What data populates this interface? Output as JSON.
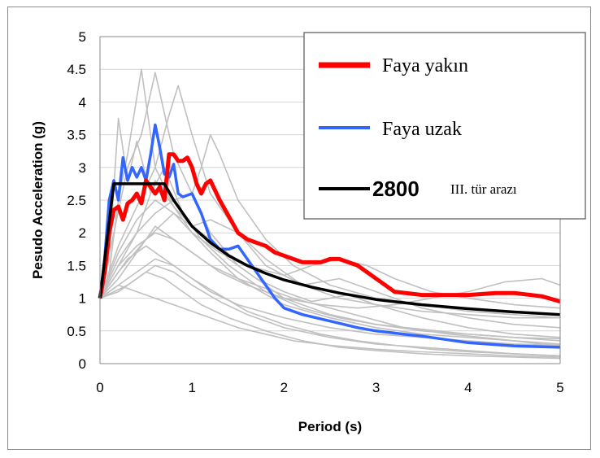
{
  "chart_data": {
    "type": "line",
    "xlabel": "Period (s)",
    "ylabel": "Pesudo Acceleration (g)",
    "xlim": [
      0,
      5
    ],
    "ylim": [
      0,
      5
    ],
    "xticks": [
      "0",
      "1",
      "2",
      "3",
      "4",
      "5"
    ],
    "yticks": [
      "0",
      "0.5",
      "1",
      "1.5",
      "2",
      "2.5",
      "3",
      "3.5",
      "4",
      "4.5",
      "5"
    ],
    "grid": true,
    "legend_position": "top-right",
    "legend": {
      "near": "Faya yakın",
      "far": "Faya uzak",
      "code_number": "2800",
      "code_suffix": "III. tür arazı"
    },
    "colors": {
      "near": "#ff0000",
      "far": "#3366ff",
      "code": "#000000",
      "records": "#c0c0c0",
      "grid": "#d4d4d4"
    },
    "series": [
      {
        "name": "Faya yakın",
        "color": "#ff0000",
        "x": [
          0,
          0.05,
          0.1,
          0.15,
          0.2,
          0.25,
          0.3,
          0.35,
          0.4,
          0.45,
          0.5,
          0.55,
          0.6,
          0.65,
          0.7,
          0.75,
          0.8,
          0.85,
          0.9,
          0.95,
          1.0,
          1.05,
          1.1,
          1.15,
          1.2,
          1.3,
          1.4,
          1.5,
          1.6,
          1.7,
          1.8,
          1.9,
          2.0,
          2.2,
          2.4,
          2.5,
          2.6,
          2.8,
          2.9,
          3.0,
          3.1,
          3.2,
          3.5,
          4.0,
          4.3,
          4.5,
          4.8,
          5.0
        ],
        "y": [
          1.0,
          1.4,
          2.0,
          2.35,
          2.4,
          2.2,
          2.45,
          2.5,
          2.6,
          2.45,
          2.8,
          2.7,
          2.6,
          2.7,
          2.5,
          3.2,
          3.2,
          3.1,
          3.1,
          3.15,
          3.0,
          2.75,
          2.6,
          2.75,
          2.8,
          2.5,
          2.25,
          2.0,
          1.9,
          1.85,
          1.8,
          1.7,
          1.65,
          1.55,
          1.55,
          1.6,
          1.6,
          1.5,
          1.4,
          1.3,
          1.2,
          1.1,
          1.05,
          1.05,
          1.08,
          1.08,
          1.03,
          0.95
        ]
      },
      {
        "name": "Faya uzak",
        "color": "#3366ff",
        "x": [
          0,
          0.05,
          0.1,
          0.15,
          0.2,
          0.25,
          0.3,
          0.35,
          0.4,
          0.45,
          0.5,
          0.55,
          0.6,
          0.65,
          0.7,
          0.75,
          0.8,
          0.85,
          0.9,
          1.0,
          1.1,
          1.2,
          1.3,
          1.4,
          1.5,
          1.6,
          1.7,
          1.8,
          1.9,
          2.0,
          2.2,
          2.5,
          2.8,
          3.0,
          3.3,
          3.5,
          4.0,
          4.5,
          5.0
        ],
        "y": [
          1.0,
          1.6,
          2.5,
          2.8,
          2.5,
          3.15,
          2.8,
          3.0,
          2.85,
          3.0,
          2.8,
          3.2,
          3.65,
          3.3,
          2.9,
          2.85,
          3.05,
          2.6,
          2.55,
          2.6,
          2.3,
          1.9,
          1.75,
          1.75,
          1.8,
          1.6,
          1.4,
          1.2,
          1.0,
          0.85,
          0.75,
          0.65,
          0.55,
          0.5,
          0.45,
          0.42,
          0.32,
          0.27,
          0.25
        ]
      },
      {
        "name": "2800",
        "color": "#000000",
        "x": [
          0,
          0.15,
          0.7,
          0.8,
          0.9,
          1.0,
          1.2,
          1.4,
          1.6,
          1.8,
          2.0,
          2.3,
          2.6,
          3.0,
          3.5,
          4.0,
          4.5,
          5.0
        ],
        "y": [
          1.0,
          2.75,
          2.75,
          2.5,
          2.3,
          2.1,
          1.85,
          1.65,
          1.5,
          1.38,
          1.28,
          1.17,
          1.08,
          0.98,
          0.9,
          0.84,
          0.79,
          0.75
        ]
      }
    ],
    "records": [
      {
        "x": [
          0,
          0.1,
          0.2,
          0.3,
          0.45,
          0.6,
          0.8,
          1.0,
          1.2,
          1.5,
          2.0,
          2.5,
          3.0,
          3.5,
          4.0,
          4.5,
          5.0
        ],
        "y": [
          1.0,
          1.4,
          2.5,
          3.2,
          4.5,
          3.0,
          2.4,
          2.0,
          1.7,
          1.3,
          0.9,
          0.7,
          0.55,
          0.45,
          0.4,
          0.35,
          0.3
        ]
      },
      {
        "x": [
          0,
          0.1,
          0.2,
          0.3,
          0.4,
          0.55,
          0.7,
          0.9,
          1.1,
          1.4,
          1.8,
          2.2,
          2.6,
          3.0,
          3.5,
          4.0,
          4.5,
          5.0
        ],
        "y": [
          1.0,
          1.6,
          3.75,
          2.8,
          3.4,
          2.6,
          3.0,
          2.3,
          1.9,
          1.5,
          1.1,
          0.85,
          0.7,
          0.6,
          0.5,
          0.45,
          0.4,
          0.38
        ]
      },
      {
        "x": [
          0,
          0.15,
          0.3,
          0.45,
          0.6,
          0.8,
          1.0,
          1.2,
          1.5,
          2.0,
          2.5,
          3.0,
          4.0,
          5.0
        ],
        "y": [
          1.0,
          2.0,
          3.0,
          3.5,
          4.45,
          3.2,
          2.6,
          2.0,
          1.5,
          1.0,
          0.75,
          0.6,
          0.45,
          0.35
        ]
      },
      {
        "x": [
          0,
          0.2,
          0.4,
          0.6,
          0.75,
          0.85,
          1.0,
          1.2,
          1.5,
          1.8,
          2.2,
          2.6,
          3.0,
          3.5,
          4.0,
          4.5,
          5.0
        ],
        "y": [
          1.0,
          1.8,
          2.4,
          3.0,
          3.8,
          4.25,
          3.5,
          2.6,
          2.0,
          1.6,
          1.2,
          1.0,
          0.9,
          0.8,
          0.75,
          0.7,
          0.7
        ]
      },
      {
        "x": [
          0,
          0.2,
          0.4,
          0.6,
          0.8,
          1.0,
          1.1,
          1.2,
          1.3,
          1.5,
          1.8,
          2.1,
          2.5,
          3.0,
          3.5,
          4.0,
          4.5,
          5.0
        ],
        "y": [
          1.0,
          1.5,
          2.0,
          2.3,
          2.5,
          2.6,
          3.0,
          3.5,
          3.2,
          2.5,
          1.9,
          1.5,
          1.2,
          1.0,
          0.9,
          0.8,
          0.75,
          0.7
        ]
      },
      {
        "x": [
          0,
          0.2,
          0.4,
          0.6,
          0.8,
          1.0,
          1.3,
          1.6,
          2.0,
          2.3,
          2.6,
          2.9,
          3.2,
          3.6,
          4.0,
          4.5,
          5.0
        ],
        "y": [
          1.0,
          1.7,
          2.2,
          2.5,
          2.3,
          2.0,
          1.7,
          1.5,
          1.35,
          1.5,
          1.6,
          1.5,
          1.3,
          1.1,
          1.0,
          0.9,
          0.85
        ]
      },
      {
        "x": [
          0,
          0.2,
          0.4,
          0.6,
          0.8,
          1.0,
          1.3,
          1.6,
          2.0,
          2.4,
          2.8,
          3.2,
          3.6,
          4.0,
          4.4,
          4.8,
          5.0
        ],
        "y": [
          1.0,
          1.5,
          1.8,
          2.0,
          1.9,
          1.7,
          1.4,
          1.2,
          1.0,
          0.9,
          0.85,
          0.9,
          1.0,
          1.1,
          1.25,
          1.3,
          1.2
        ]
      },
      {
        "x": [
          0,
          0.15,
          0.3,
          0.5,
          0.7,
          0.9,
          1.2,
          1.5,
          2.0,
          2.5,
          3.0,
          3.5,
          4.0,
          4.5,
          5.0
        ],
        "y": [
          1.0,
          1.3,
          1.6,
          1.8,
          1.6,
          1.4,
          1.1,
          0.9,
          0.7,
          0.55,
          0.45,
          0.4,
          0.35,
          0.3,
          0.28
        ]
      },
      {
        "x": [
          0,
          0.2,
          0.4,
          0.6,
          0.8,
          1.0,
          1.3,
          1.6,
          2.0,
          2.4,
          2.8,
          3.2,
          3.6,
          4.0,
          4.5,
          5.0
        ],
        "y": [
          1.0,
          1.2,
          1.4,
          1.6,
          1.5,
          1.3,
          1.05,
          0.8,
          0.6,
          0.45,
          0.35,
          0.28,
          0.22,
          0.18,
          0.15,
          0.12
        ]
      },
      {
        "x": [
          0,
          0.15,
          0.3,
          0.5,
          0.7,
          0.9,
          1.1,
          1.4,
          1.8,
          2.2,
          2.6,
          3.0,
          3.5,
          4.0,
          4.5,
          5.0
        ],
        "y": [
          1.0,
          1.1,
          1.2,
          1.4,
          1.3,
          1.1,
          0.9,
          0.7,
          0.5,
          0.35,
          0.25,
          0.2,
          0.15,
          0.12,
          0.1,
          0.08
        ]
      },
      {
        "x": [
          0,
          0.2,
          0.4,
          0.6,
          0.8,
          1.0,
          1.2,
          1.5,
          1.8,
          2.2,
          2.6,
          3.0,
          3.5,
          4.0,
          4.5,
          5.0
        ],
        "y": [
          1.0,
          1.6,
          2.0,
          2.8,
          2.4,
          2.1,
          2.2,
          2.0,
          1.5,
          1.2,
          1.3,
          1.1,
          0.85,
          0.7,
          0.6,
          0.55
        ]
      },
      {
        "x": [
          0,
          0.2,
          0.4,
          0.6,
          0.8,
          1.0,
          1.2,
          1.5,
          1.8,
          2.1,
          2.5,
          3.0,
          3.5,
          4.0,
          4.5,
          5.0
        ],
        "y": [
          1.0,
          1.2,
          1.1,
          1.0,
          0.9,
          0.8,
          0.7,
          0.55,
          0.45,
          0.35,
          0.28,
          0.22,
          0.18,
          0.15,
          0.12,
          0.1
        ]
      },
      {
        "x": [
          0,
          0.2,
          0.5,
          0.8,
          1.0,
          1.2,
          1.4,
          1.7,
          2.0,
          2.3,
          2.7,
          3.0,
          3.5,
          4.0,
          4.5,
          5.0
        ],
        "y": [
          1.0,
          1.4,
          1.9,
          2.3,
          2.1,
          1.9,
          1.6,
          1.3,
          1.1,
          0.95,
          1.05,
          0.9,
          0.7,
          0.55,
          0.45,
          0.4
        ]
      },
      {
        "x": [
          0,
          0.2,
          0.4,
          0.6,
          0.9,
          1.2,
          1.5,
          1.8,
          2.1,
          2.5,
          2.9,
          3.3,
          3.8,
          4.3,
          4.8,
          5.0
        ],
        "y": [
          1.0,
          1.3,
          1.7,
          2.1,
          1.8,
          1.5,
          1.3,
          1.15,
          1.0,
          0.85,
          0.7,
          0.55,
          0.45,
          0.38,
          0.3,
          0.28
        ]
      },
      {
        "x": [
          0,
          0.2,
          0.4,
          0.6,
          0.8,
          1.0,
          1.3,
          1.6,
          2.0,
          2.5,
          3.0,
          3.5,
          4.0,
          4.5,
          5.0
        ],
        "y": [
          1.0,
          1.1,
          1.3,
          1.5,
          1.4,
          1.2,
          0.95,
          0.75,
          0.55,
          0.4,
          0.3,
          0.25,
          0.2,
          0.15,
          0.12
        ]
      }
    ]
  }
}
